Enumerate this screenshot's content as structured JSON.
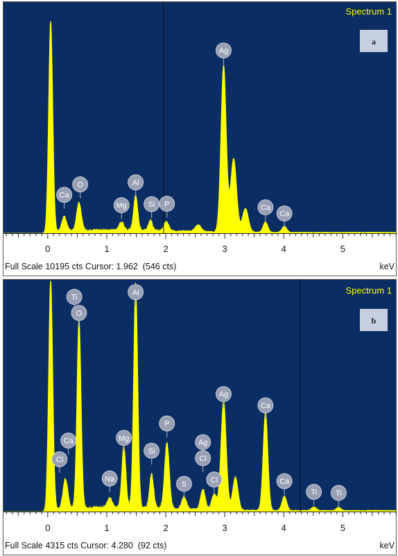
{
  "colors": {
    "plot_bg": "#0a2e63",
    "trace": "#ffff00",
    "spectrum_label": "#ffff00",
    "peak_badge": "#9aa0b4",
    "panel_badge": "#c7d0e0",
    "cursor": "#0a0a0a"
  },
  "chart_data": [
    {
      "type": "line",
      "title": "Spectrum 1",
      "panel_label": "a",
      "xlabel": "keV",
      "xlim": [
        -0.75,
        5.9
      ],
      "ylim": [
        0,
        10195
      ],
      "x_ticks": [
        "0",
        "1",
        "2",
        "3",
        "4",
        "5"
      ],
      "footer": {
        "full_scale": "Full Scale 10195 cts",
        "cursor": "Cursor: 1.962",
        "cursor_counts": "(546 cts)"
      },
      "cursor_kev": 1.962,
      "baseline": 120,
      "peaks": [
        {
          "x": 0.05,
          "y": 10195,
          "w": 0.035
        },
        {
          "x": 0.28,
          "y": 700,
          "w": 0.04
        },
        {
          "x": 0.53,
          "y": 1350,
          "w": 0.04
        },
        {
          "x": 1.25,
          "y": 380,
          "w": 0.04
        },
        {
          "x": 1.49,
          "y": 1680,
          "w": 0.035
        },
        {
          "x": 1.74,
          "y": 480,
          "w": 0.035
        },
        {
          "x": 2.01,
          "y": 430,
          "w": 0.04
        },
        {
          "x": 2.55,
          "y": 320,
          "w": 0.05
        },
        {
          "x": 2.98,
          "y": 8050,
          "w": 0.045
        },
        {
          "x": 3.15,
          "y": 3550,
          "w": 0.05
        },
        {
          "x": 3.35,
          "y": 1150,
          "w": 0.05
        },
        {
          "x": 3.69,
          "y": 500,
          "w": 0.04
        },
        {
          "x": 4.01,
          "y": 300,
          "w": 0.04
        }
      ],
      "element_labels": [
        {
          "label": "Ca",
          "x": 0.28,
          "y": 1850
        },
        {
          "label": "O",
          "x": 0.55,
          "y": 2350
        },
        {
          "label": "Mg",
          "x": 1.25,
          "y": 1350
        },
        {
          "label": "Al",
          "x": 1.49,
          "y": 2450
        },
        {
          "label": "Si",
          "x": 1.76,
          "y": 1400
        },
        {
          "label": "P",
          "x": 2.02,
          "y": 1420
        },
        {
          "label": "Ag",
          "x": 2.98,
          "y": 8800
        },
        {
          "label": "Ca",
          "x": 3.69,
          "y": 1250
        },
        {
          "label": "Ca",
          "x": 4.01,
          "y": 950
        }
      ]
    },
    {
      "type": "line",
      "title": "Spectrum 1",
      "panel_label": "b",
      "xlabel": "keV",
      "xlim": [
        -0.75,
        5.9
      ],
      "ylim": [
        0,
        4315
      ],
      "x_ticks": [
        "0",
        "1",
        "2",
        "3",
        "4",
        "5"
      ],
      "footer": {
        "full_scale": "Full Scale 4315 cts",
        "cursor": "Cursor: 4.280",
        "cursor_counts": "(92 cts)"
      },
      "cursor_kev": 4.28,
      "baseline": 60,
      "peaks": [
        {
          "x": 0.05,
          "y": 4315,
          "w": 0.035
        },
        {
          "x": 0.3,
          "y": 560,
          "w": 0.04
        },
        {
          "x": 0.53,
          "y": 3560,
          "w": 0.035
        },
        {
          "x": 1.05,
          "y": 180,
          "w": 0.04
        },
        {
          "x": 1.29,
          "y": 1150,
          "w": 0.035
        },
        {
          "x": 1.49,
          "y": 4200,
          "w": 0.035
        },
        {
          "x": 1.76,
          "y": 630,
          "w": 0.035
        },
        {
          "x": 2.02,
          "y": 1230,
          "w": 0.04
        },
        {
          "x": 2.31,
          "y": 220,
          "w": 0.04
        },
        {
          "x": 2.63,
          "y": 380,
          "w": 0.04
        },
        {
          "x": 2.82,
          "y": 300,
          "w": 0.04
        },
        {
          "x": 2.98,
          "y": 2050,
          "w": 0.045
        },
        {
          "x": 3.18,
          "y": 620,
          "w": 0.045
        },
        {
          "x": 3.69,
          "y": 1850,
          "w": 0.04
        },
        {
          "x": 4.01,
          "y": 270,
          "w": 0.04
        },
        {
          "x": 4.51,
          "y": 70,
          "w": 0.04
        },
        {
          "x": 4.93,
          "y": 60,
          "w": 0.04
        }
      ],
      "element_labels": [
        {
          "label": "Ti",
          "x": 0.45,
          "y": 4020
        },
        {
          "label": "O",
          "x": 0.53,
          "y": 3720
        },
        {
          "label": "Al",
          "x": 1.49,
          "y": 4110
        },
        {
          "label": "Ca",
          "x": 0.35,
          "y": 1330
        },
        {
          "label": "Cl",
          "x": 0.2,
          "y": 980
        },
        {
          "label": "Mg",
          "x": 1.29,
          "y": 1380
        },
        {
          "label": "Na",
          "x": 1.05,
          "y": 620
        },
        {
          "label": "Si",
          "x": 1.76,
          "y": 1140
        },
        {
          "label": "P",
          "x": 2.02,
          "y": 1650
        },
        {
          "label": "S",
          "x": 2.31,
          "y": 520
        },
        {
          "label": "Ag",
          "x": 2.63,
          "y": 1300
        },
        {
          "label": "Cl",
          "x": 2.63,
          "y": 1000
        },
        {
          "label": "Cl",
          "x": 2.82,
          "y": 600
        },
        {
          "label": "Ag",
          "x": 2.98,
          "y": 2200
        },
        {
          "label": "Ca",
          "x": 3.69,
          "y": 1990
        },
        {
          "label": "Ca",
          "x": 4.01,
          "y": 570
        },
        {
          "label": "Ti",
          "x": 4.51,
          "y": 370
        },
        {
          "label": "Ti",
          "x": 4.93,
          "y": 350
        }
      ]
    }
  ]
}
